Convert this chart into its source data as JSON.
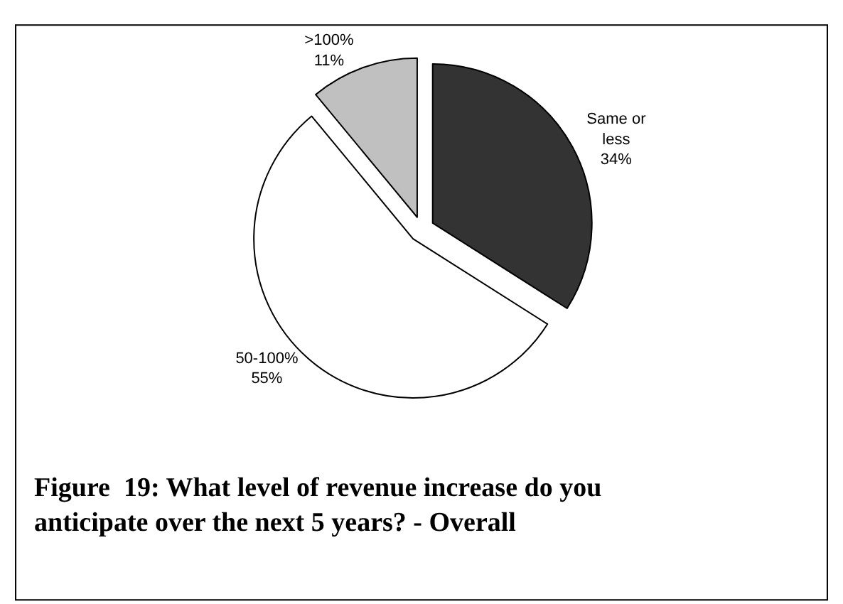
{
  "chart_data": {
    "type": "pie",
    "title": "Figure  19: What level of revenue increase do you anticipate over the next 5 years? - Overall",
    "categories": [
      "Same or less",
      "50-100%",
      ">100%"
    ],
    "values": [
      34,
      55,
      11
    ],
    "value_labels": [
      "34%",
      "55%",
      "11%"
    ],
    "colors": [
      "#333333",
      "#ffffff",
      "#c0c0c0"
    ],
    "legend": false
  }
}
